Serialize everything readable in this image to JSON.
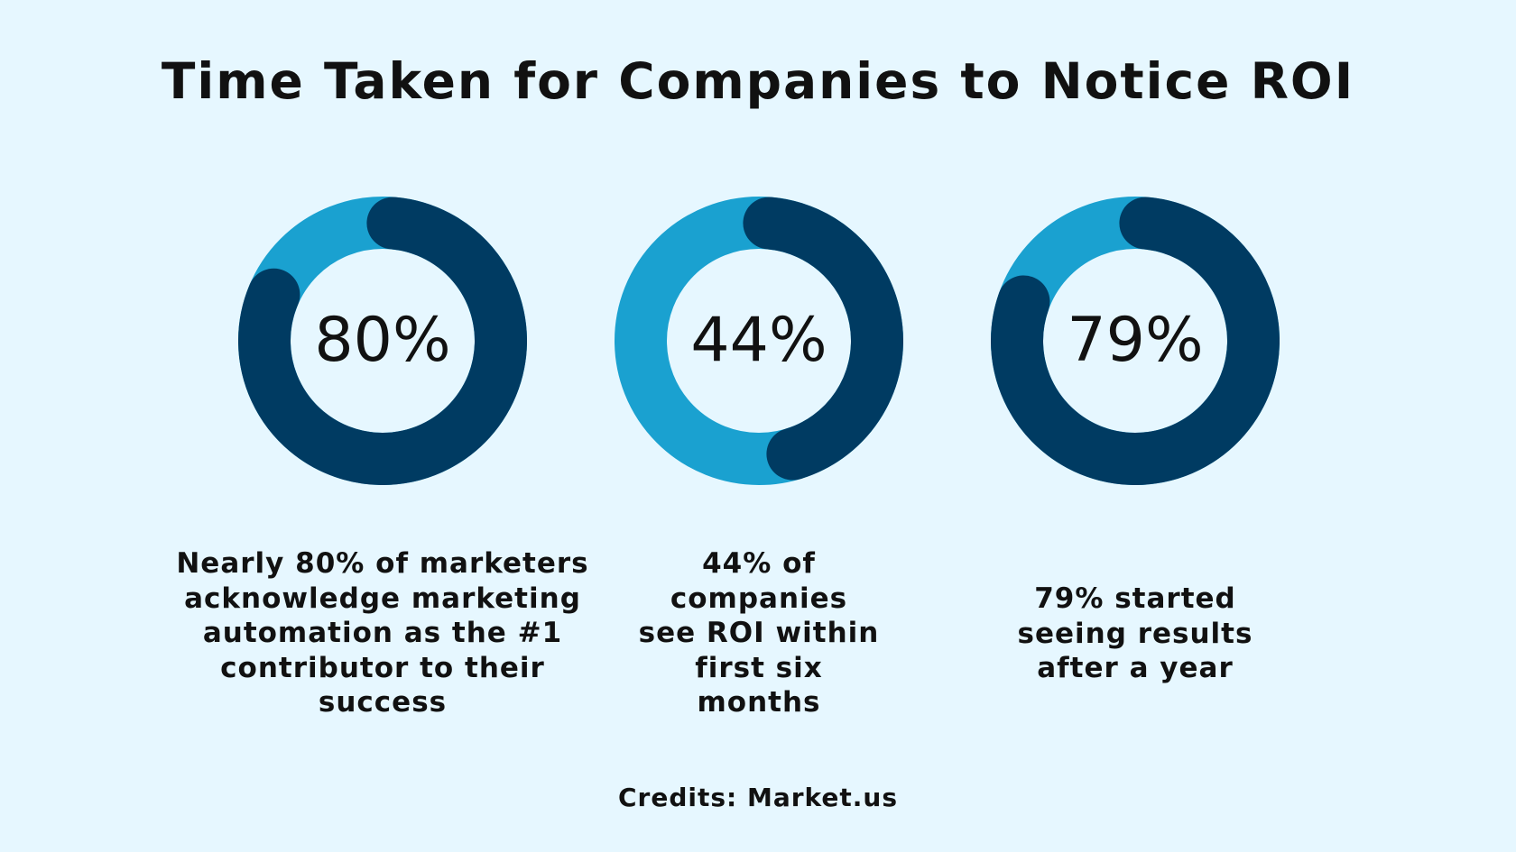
{
  "title": "Time Taken for Companies to Notice ROI",
  "credits": "Credits: Market.us",
  "colors": {
    "background": "#e6f7ff",
    "dark_arc": "#003b62",
    "light_arc": "#1aa1d0",
    "text": "#111111"
  },
  "chart_data": [
    {
      "type": "pie",
      "variant": "donut",
      "value": 80,
      "label": "80%",
      "caption_lines": [
        "Nearly 80% of marketers",
        "acknowledge marketing",
        "automation as the #1",
        "contributor to their",
        "success"
      ]
    },
    {
      "type": "pie",
      "variant": "donut",
      "value": 44,
      "label": "44%",
      "caption_lines": [
        "44% of",
        "companies",
        "see ROI within",
        "first six",
        "months"
      ]
    },
    {
      "type": "pie",
      "variant": "donut",
      "value": 79,
      "label": "79%",
      "caption_lines": [
        "79% started",
        "seeing results",
        "after a year"
      ]
    }
  ]
}
